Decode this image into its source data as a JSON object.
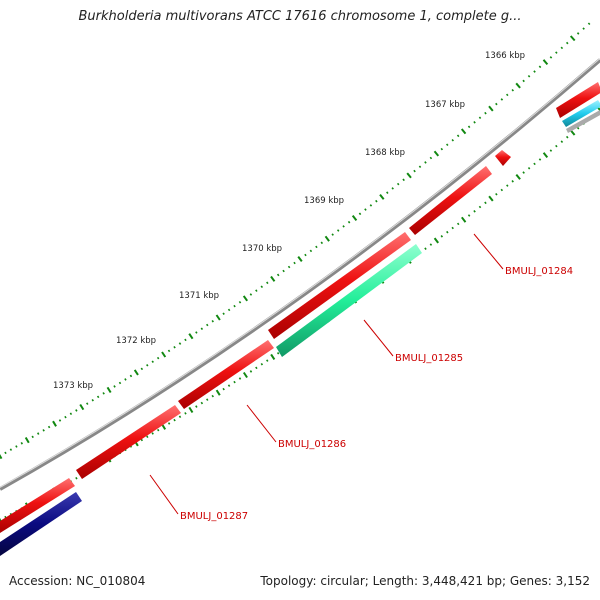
{
  "title": "Burkholderia multivorans ATCC 17616 chromosome 1, complete g...",
  "footer": {
    "accession": "Accession: NC_010804",
    "summary": "Topology: circular; Length: 3,448,421 bp; Genes: 3,152"
  },
  "ticks": [
    {
      "label": "1366 kbp"
    },
    {
      "label": "1367 kbp"
    },
    {
      "label": "1368 kbp"
    },
    {
      "label": "1369 kbp"
    },
    {
      "label": "1370 kbp"
    },
    {
      "label": "1371 kbp"
    },
    {
      "label": "1372 kbp"
    },
    {
      "label": "1373 kbp"
    }
  ],
  "genes": [
    {
      "label": "BMULJ_01284"
    },
    {
      "label": "BMULJ_01285"
    },
    {
      "label": "BMULJ_01286"
    },
    {
      "label": "BMULJ_01287"
    }
  ],
  "colors": {
    "forward_gene": "#ee1111",
    "reverse_gene": "#22ee99",
    "dark_gene": "#0a0a80",
    "cyan_gene": "#22ccee",
    "backbone": "#888888",
    "tick_mark": "#118811",
    "label_red": "#cc0000"
  }
}
